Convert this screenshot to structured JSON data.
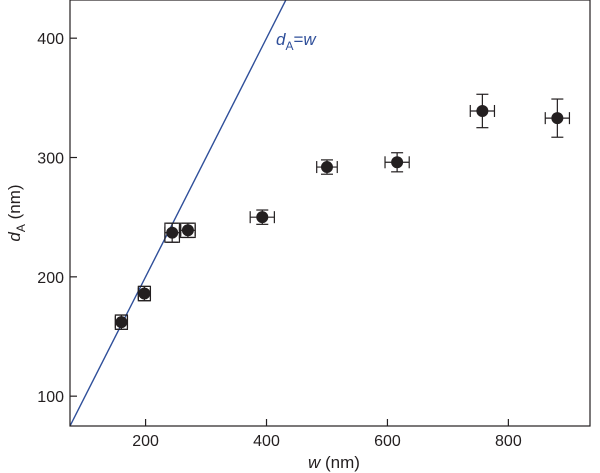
{
  "chart_data": {
    "type": "scatter",
    "title": "",
    "xlabel": "w (nm)",
    "ylabel": "dA (nm)",
    "xlim": [
      75,
      935
    ],
    "ylim": [
      75,
      432
    ],
    "grid": false,
    "x_ticks": [
      200,
      400,
      600,
      800
    ],
    "y_ticks": [
      100,
      200,
      300,
      400
    ],
    "x_tick_labels": [
      "200",
      "400",
      "600",
      "800"
    ],
    "y_tick_labels": [
      "100",
      "200",
      "300",
      "400"
    ],
    "series": [
      {
        "marker": "filled-circle",
        "color": "#231f20",
        "points": [
          {
            "x": 160,
            "y": 162,
            "xerr": 10,
            "yerr": 6,
            "boxed": true
          },
          {
            "x": 198,
            "y": 186,
            "xerr": 10,
            "yerr": 6,
            "boxed": true
          },
          {
            "x": 244,
            "y": 237,
            "xerr": 12,
            "yerr": 8,
            "boxed": true
          },
          {
            "x": 270,
            "y": 239,
            "xerr": 12,
            "yerr": 6,
            "boxed": true
          },
          {
            "x": 393,
            "y": 250,
            "xerr": 20,
            "yerr": 6,
            "boxed": false
          },
          {
            "x": 500,
            "y": 292,
            "xerr": 17,
            "yerr": 6,
            "boxed": false
          },
          {
            "x": 616,
            "y": 296,
            "xerr": 20,
            "yerr": 8,
            "boxed": false
          },
          {
            "x": 757,
            "y": 339,
            "xerr": 20,
            "yerr": 14,
            "boxed": false
          },
          {
            "x": 881,
            "y": 333,
            "xerr": 20,
            "yerr": 16,
            "boxed": false
          }
        ]
      }
    ],
    "reference_line": {
      "label_main": "d",
      "label_sub": "A",
      "label_eq": "=",
      "label_var": "w",
      "color": "#2f4f9a",
      "slope": 1,
      "intercept": 0
    }
  },
  "axes": {
    "x_title_var": "w",
    "x_title_unit": " (nm)",
    "y_title_var": "d",
    "y_title_sub": "A",
    "y_title_unit": " (nm)"
  }
}
